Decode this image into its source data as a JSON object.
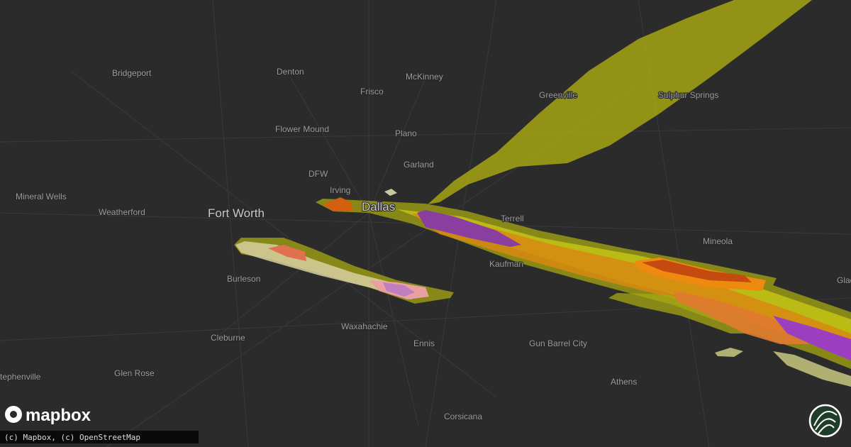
{
  "map": {
    "places": [
      "Denton",
      "McKinney",
      "Bridgeport",
      "Frisco",
      "Flower Mound",
      "Plano",
      "DFW",
      "Garland",
      "Irving",
      "Dallas",
      "Mineral Wells",
      "Weatherford",
      "Fort Worth",
      "Terrell",
      "Greenville",
      "Sulphur Springs",
      "Mineola",
      "Kaufman",
      "Burleson",
      "Waxahachie",
      "Ennis",
      "Cleburne",
      "Gun Barrel City",
      "Athens",
      "Glen Rose",
      "Stephenville",
      "Corsicana",
      "Gladewater"
    ],
    "logo": "mapbox",
    "attribution": "(c) Mapbox, (c) OpenStreetMap"
  }
}
